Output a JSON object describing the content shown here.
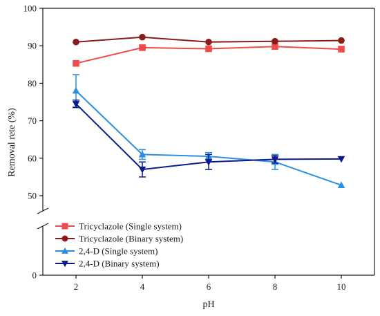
{
  "chart_data": {
    "type": "line",
    "xlabel": "pH",
    "ylabel": "Removal rete (%)",
    "x": [
      2,
      4,
      6,
      8,
      10
    ],
    "xlim": [
      1,
      11
    ],
    "x_ticks": [
      2,
      4,
      6,
      8,
      10
    ],
    "ylim": [
      0,
      100
    ],
    "y_ticks": [
      0,
      50,
      60,
      70,
      80,
      90,
      100
    ],
    "axis_break": [
      25,
      45
    ],
    "grid": false,
    "legend_position": "bottom-left",
    "series": [
      {
        "name": "Tricyclazole (Single system)",
        "marker": "square",
        "color": "#f04a4a",
        "values": [
          85.3,
          89.5,
          89.2,
          89.8,
          89.1
        ],
        "errors": [
          0,
          0,
          0,
          0,
          0
        ]
      },
      {
        "name": "Tricyclazole (Binary system)",
        "marker": "circle",
        "color": "#8b1a1a",
        "values": [
          91.0,
          92.3,
          91.0,
          91.2,
          91.4
        ],
        "errors": [
          0,
          0,
          0,
          0,
          0
        ]
      },
      {
        "name": "2,4-D (Single system)",
        "marker": "triangle-up",
        "color": "#2b8fe0",
        "values": [
          78.0,
          61.0,
          60.5,
          59.0,
          52.8
        ],
        "errors": [
          4.3,
          1.3,
          1.0,
          2.0,
          0
        ]
      },
      {
        "name": "2,4-D (Binary system)",
        "marker": "triangle-down",
        "color": "#0a1a8c",
        "values": [
          74.5,
          57.0,
          59.0,
          59.7,
          59.8
        ],
        "errors": [
          1.0,
          2.0,
          2.0,
          1.0,
          0
        ]
      }
    ]
  }
}
